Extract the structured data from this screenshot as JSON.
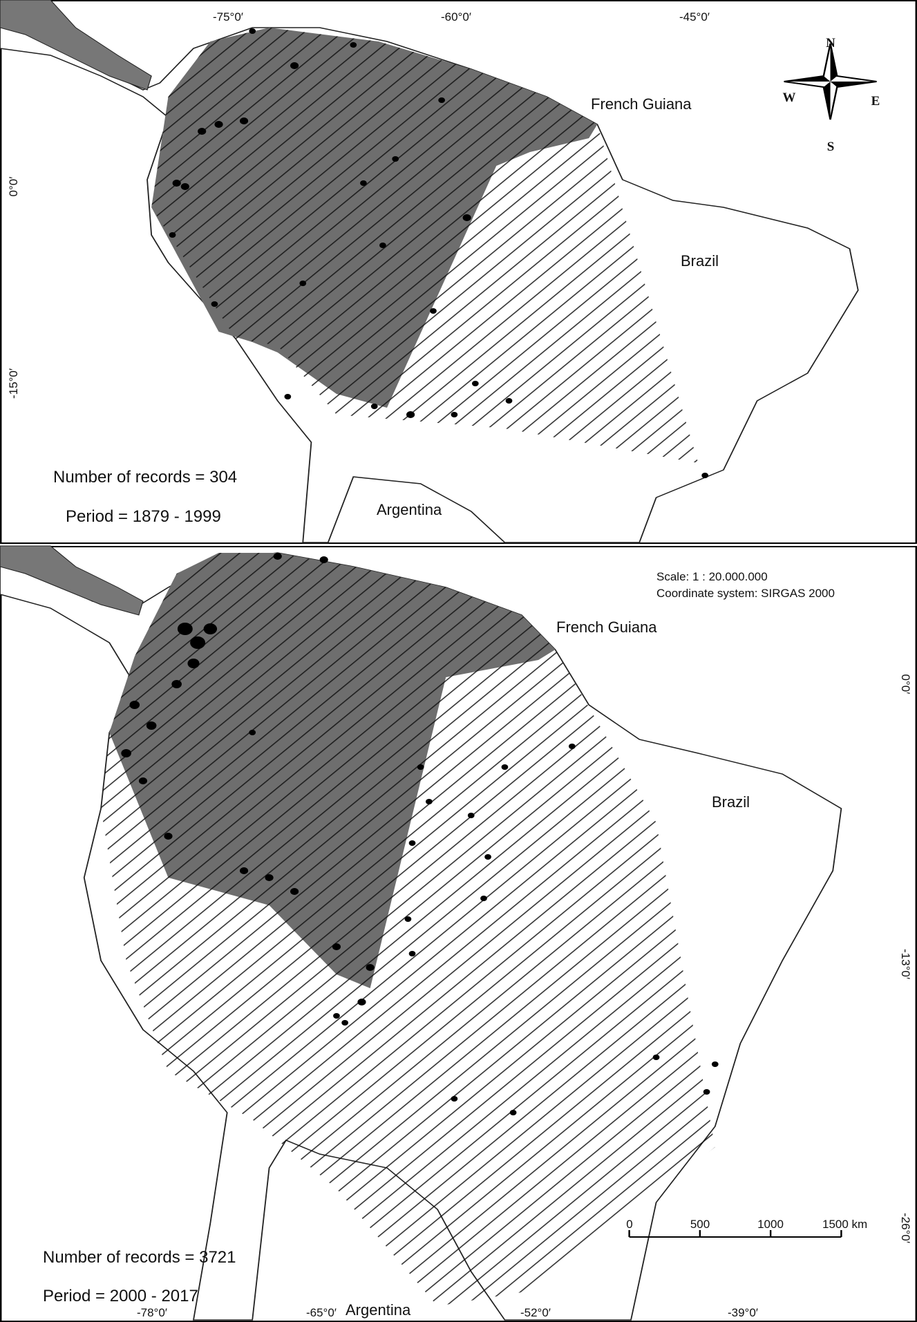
{
  "panels": [
    {
      "longitude_labels": [
        "-75°0′",
        "-60°0′",
        "-45°0′"
      ],
      "latitude_labels": [
        "0°0′",
        "-15°0′"
      ],
      "compass": {
        "north": "N",
        "west": "W",
        "east": "E",
        "south": "S"
      },
      "places": [
        "French Guiana",
        "Brazil",
        "Argentina"
      ],
      "records": "Number of records = 304",
      "period": "Period = 1879 - 1999"
    },
    {
      "scale": "Scale: 1 : 20.000.000",
      "coordinate_system": "Coordinate system: SIRGAS 2000",
      "places": [
        "French Guiana",
        "Brazil",
        "Argentina"
      ],
      "records": "Number of records = 3721",
      "period": "Period = 2000 - 2017",
      "scale_bar": [
        "0",
        "500",
        "1000",
        "1500 km"
      ],
      "longitude_labels": [
        "-78°0′",
        "-65°0′",
        "-52°0′",
        "-39°0′"
      ],
      "latitude_labels": [
        "0°0′",
        "-13°0′",
        "-26°0′"
      ]
    }
  ]
}
